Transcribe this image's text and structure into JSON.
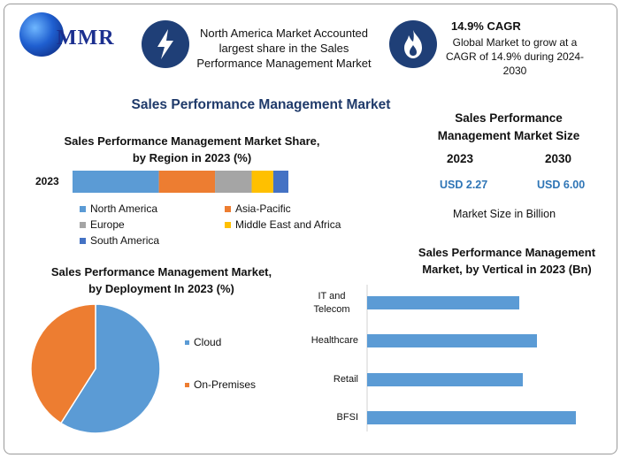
{
  "brand": {
    "logo_text": "MMR"
  },
  "highlights": {
    "region": {
      "text": "North America Market Accounted largest share in the Sales Performance Management Market",
      "icon": "lightning-icon"
    },
    "cagr": {
      "title": "14.9% CAGR",
      "text": "Global Market to grow at a CAGR of 14.9% during 2024-2030",
      "icon": "flame-icon"
    }
  },
  "main_title": "Sales Performance Management Market",
  "market_size": {
    "title": "Sales Performance Management Market Size",
    "years": [
      "2023",
      "2030"
    ],
    "values": [
      "USD 2.27",
      "USD 6.00"
    ],
    "unit_note": "Market Size in Billion",
    "value_color": "#2e75b6"
  },
  "chart_data": [
    {
      "type": "bar",
      "orientation": "horizontal-stacked",
      "title": "Sales Performance Management Market Share, by Region in 2023 (%)",
      "categories": [
        "2023"
      ],
      "series": [
        {
          "name": "North America",
          "values": [
            40
          ],
          "color": "#5b9bd5"
        },
        {
          "name": "Asia-Pacific",
          "values": [
            26
          ],
          "color": "#ed7d31"
        },
        {
          "name": "Europe",
          "values": [
            17
          ],
          "color": "#a5a5a5"
        },
        {
          "name": "Middle East and Africa",
          "values": [
            10
          ],
          "color": "#ffc000"
        },
        {
          "name": "South America",
          "values": [
            7
          ],
          "color": "#4472c4"
        }
      ],
      "xlim": [
        0,
        100
      ],
      "legend": "bottom"
    },
    {
      "type": "pie",
      "title": "Sales Performance Management Market, by Deployment In 2023 (%)",
      "labels": [
        "Cloud",
        "On-Premises"
      ],
      "values": [
        59,
        41
      ],
      "colors": [
        "#5b9bd5",
        "#ed7d31"
      ],
      "legend": "right"
    },
    {
      "type": "bar",
      "orientation": "horizontal",
      "title": "Sales Performance Management Market, by Vertical in 2023 (Bn)",
      "categories": [
        "IT and Telecom",
        "Healthcare",
        "Retail",
        "BFSI"
      ],
      "values": [
        0.43,
        0.48,
        0.44,
        0.59
      ],
      "xlim": [
        0,
        0.65
      ],
      "color": "#5b9bd5",
      "grid": false
    }
  ]
}
